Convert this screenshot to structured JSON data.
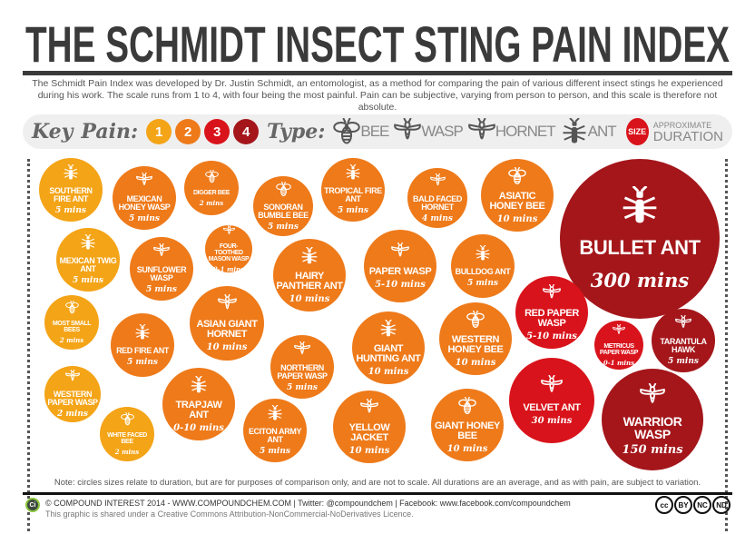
{
  "title": "THE SCHMIDT INSECT STING PAIN INDEX",
  "intro": "The Schmidt Pain Index was developed by Dr. Justin Schmidt, an entomologist, as a method for comparing the pain of various different insect stings he experienced during his work. The scale runs from 1 to 4, with four being the most painful. Pain can be subjective, varying from person to person, and this scale is therefore not absolute.",
  "key": {
    "key_label": "Key",
    "pain_label": "Pain:",
    "pain_levels": [
      {
        "label": "1",
        "color": "#f4a417"
      },
      {
        "label": "2",
        "color": "#ee7a1a"
      },
      {
        "label": "3",
        "color": "#d9131b"
      },
      {
        "label": "4",
        "color": "#a4161a"
      }
    ],
    "type_label": "Type:",
    "types": [
      {
        "icon": "bee",
        "label": "BEE"
      },
      {
        "icon": "wasp",
        "label": "WASP"
      },
      {
        "icon": "hornet",
        "label": "HORNET"
      },
      {
        "icon": "ant",
        "label": "ANT"
      }
    ],
    "size_label": "SIZE",
    "size_desc_1": "APPROXIMATE",
    "size_desc_2": "DURATION"
  },
  "insects": [
    {
      "name": "Southern Fire Ant",
      "duration": "5 mins",
      "type": "ant",
      "pain": 1
    },
    {
      "name": "Mexican Honey Wasp",
      "duration": "5 mins",
      "type": "wasp",
      "pain": 2
    },
    {
      "name": "Digger Bee",
      "duration": "2 mins",
      "type": "bee",
      "pain": 2
    },
    {
      "name": "Sonoran Bumble Bee",
      "duration": "5 mins",
      "type": "bee",
      "pain": 2
    },
    {
      "name": "Tropical Fire Ant",
      "duration": "5 mins",
      "type": "ant",
      "pain": 2
    },
    {
      "name": "Bald Faced Hornet",
      "duration": "4 mins",
      "type": "hornet",
      "pain": 2
    },
    {
      "name": "Asiatic Honey Bee",
      "duration": "10 mins",
      "type": "bee",
      "pain": 2
    },
    {
      "name": "Bullet Ant",
      "duration": "300 mins",
      "type": "ant",
      "pain": 4
    },
    {
      "name": "Mexican Twig Ant",
      "duration": "5 mins",
      "type": "ant",
      "pain": 1
    },
    {
      "name": "Sunflower Wasp",
      "duration": "5 mins",
      "type": "wasp",
      "pain": 2
    },
    {
      "name": "Four-Toothed Mason Wasp",
      "duration": "0-1 mins",
      "type": "wasp",
      "pain": 2
    },
    {
      "name": "Hairy Panther Ant",
      "duration": "10 mins",
      "type": "ant",
      "pain": 2
    },
    {
      "name": "Paper Wasp",
      "duration": "5-10 mins",
      "type": "wasp",
      "pain": 2
    },
    {
      "name": "Bulldog Ant",
      "duration": "5 mins",
      "type": "ant",
      "pain": 2
    },
    {
      "name": "Most Small Bees",
      "duration": "2 mins",
      "type": "bee",
      "pain": 1
    },
    {
      "name": "Red Fire Ant",
      "duration": "5 mins",
      "type": "ant",
      "pain": 2
    },
    {
      "name": "Asian Giant Hornet",
      "duration": "10 mins",
      "type": "hornet",
      "pain": 2
    },
    {
      "name": "Red Paper Wasp",
      "duration": "5-10 mins",
      "type": "wasp",
      "pain": 3
    },
    {
      "name": "Metricus Paper Wasp",
      "duration": "0-1 mins",
      "type": "wasp",
      "pain": 3
    },
    {
      "name": "Tarantula Hawk",
      "duration": "5 mins",
      "type": "wasp",
      "pain": 4
    },
    {
      "name": "Northern Paper Wasp",
      "duration": "5 mins",
      "type": "wasp",
      "pain": 2
    },
    {
      "name": "Giant Hunting Ant",
      "duration": "10 mins",
      "type": "ant",
      "pain": 2
    },
    {
      "name": "Western Honey Bee",
      "duration": "10 mins",
      "type": "bee",
      "pain": 2
    },
    {
      "name": "Western Paper Wasp",
      "duration": "2 mins",
      "type": "wasp",
      "pain": 1
    },
    {
      "name": "Trapjaw Ant",
      "duration": "0-10 mins",
      "type": "ant",
      "pain": 2
    },
    {
      "name": "Velvet Ant",
      "duration": "30 mins",
      "type": "wasp",
      "pain": 3
    },
    {
      "name": "Warrior Wasp",
      "duration": "150 mins",
      "type": "wasp",
      "pain": 4
    },
    {
      "name": "White Faced Bee",
      "duration": "2 mins",
      "type": "bee",
      "pain": 1
    },
    {
      "name": "Eciton Army Ant",
      "duration": "5 mins",
      "type": "ant",
      "pain": 2
    },
    {
      "name": "Yellow Jacket",
      "duration": "10 mins",
      "type": "wasp",
      "pain": 2
    },
    {
      "name": "Giant Honey Bee",
      "duration": "10 mins",
      "type": "bee",
      "pain": 2
    }
  ],
  "note": "Note: circles sizes relate to duration, but are for purposes of comparison only, and are not to scale. All durations are an average, and as with pain, are subject to variation.",
  "footer": {
    "logo": "Ci",
    "credit": "© COMPOUND INTEREST 2014 - WWW.COMPOUNDCHEM.COM | Twitter: @compoundchem | Facebook: www.facebook.com/compoundchem",
    "licence": "This graphic is shared under a Creative Commons Attribution-NonCommercial-NoDerivatives Licence.",
    "cc_badges": [
      "cc",
      "BY",
      "NC",
      "ND"
    ]
  }
}
